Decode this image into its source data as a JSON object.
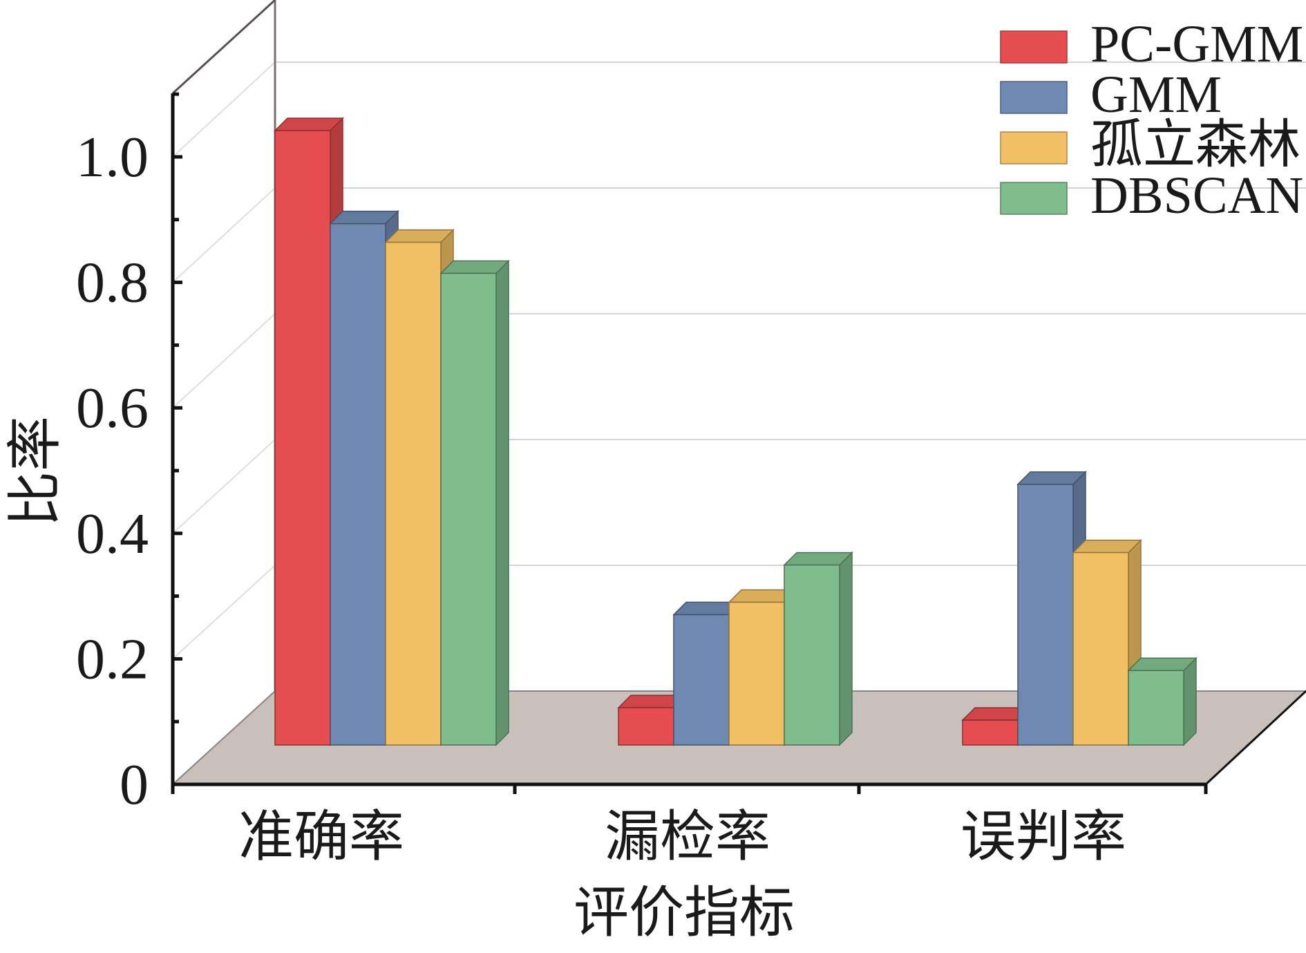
{
  "chart_data": {
    "type": "bar",
    "style": "3d",
    "categories": [
      "准确率",
      "漏检率",
      "误判率"
    ],
    "series": [
      {
        "name": "PC-GMM",
        "color": "#e64d50",
        "values": [
          0.99,
          0.06,
          0.04
        ]
      },
      {
        "name": "GMM",
        "color": "#6f89b2",
        "values": [
          0.84,
          0.21,
          0.42
        ]
      },
      {
        "name": "孤立森林",
        "color": "#f2c064",
        "values": [
          0.81,
          0.23,
          0.31
        ]
      },
      {
        "name": "DBSCAN",
        "color": "#7fbd8c",
        "values": [
          0.76,
          0.29,
          0.12
        ]
      }
    ],
    "xlabel": "评价指标",
    "ylabel": "比率",
    "yticks": [
      "0",
      "0.2",
      "0.4",
      "0.6",
      "0.8",
      "1.0"
    ],
    "ylim": [
      0,
      1.1
    ],
    "grid": true,
    "legend_position": "top-right",
    "floor_color": "#c9bfbb"
  }
}
